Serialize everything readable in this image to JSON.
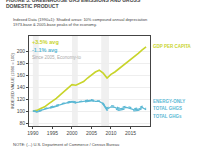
{
  "chart_data": {
    "type": "line",
    "title": "FIGURE 3. GREENHOUSE GAS EMISSIONS AND GROSS DOMESTIC PRODUCT",
    "subtitle": "Indexed Data (1990=1): Shaded areas: 10% compound annual depreciation 1973-base & 2005-base peaks of the economy.",
    "ylabel": "INDEXED VALUE (1990 = 100)",
    "note": "NOTE: (...) U.S. Department of Commerce / Census Bureau",
    "x": [
      1990,
      1991,
      1992,
      1993,
      1994,
      1995,
      1996,
      1997,
      1998,
      1999,
      2000,
      2001,
      2002,
      2003,
      2004,
      2005,
      2006,
      2007,
      2008,
      2009,
      2010,
      2011,
      2012,
      2013,
      2014,
      2015,
      2016,
      2017,
      2018,
      2019
    ],
    "series": [
      {
        "color": "#c8d42a",
        "line_style": "solid",
        "values": [
          100,
          101,
          104,
          107,
          112,
          116,
          121,
          127,
          133,
          139,
          144,
          143,
          146,
          149,
          155,
          160,
          165,
          168,
          163,
          155,
          161,
          165,
          170,
          175,
          181,
          186,
          190,
          196,
          202,
          207
        ]
      },
      {
        "color": "#5bb8d4",
        "line_style": "solid",
        "values": [
          100,
          99,
          101,
          103,
          105,
          106,
          109,
          111,
          113,
          115,
          116,
          114,
          115,
          116,
          118,
          118,
          116,
          116,
          112,
          103,
          107,
          106,
          103,
          104,
          106,
          104,
          102,
          103,
          106,
          102
        ]
      },
      {
        "color": "#5bb8d4",
        "line_style": "dashed",
        "values": [
          100,
          98,
          100,
          102,
          104,
          105,
          108,
          110,
          112,
          114,
          115,
          113,
          114,
          115,
          117,
          117,
          115,
          115,
          111,
          101,
          105,
          104,
          101,
          102,
          104,
          102,
          100,
          101,
          104,
          100
        ]
      },
      {
        "color": "#5bb8d4",
        "line_style": "dotted",
        "values": [
          100,
          100,
          101,
          104,
          106,
          107,
          109,
          112,
          113,
          116,
          117,
          115,
          116,
          117,
          118,
          119,
          117,
          117,
          113,
          105,
          109,
          108,
          105,
          106,
          108,
          106,
          104,
          105,
          108,
          104
        ]
      }
    ],
    "shaded_ranges": [
      [
        1990,
        1991.5
      ],
      [
        2000,
        2001.5
      ],
      [
        2007.5,
        2009.5
      ]
    ],
    "annotations": [
      {
        "text": "+3.5% avg",
        "color": "#c8d42a"
      },
      {
        "text": "-1.1% avg",
        "color": "#5bb8d4"
      },
      {
        "text": "Since 2005, Economy-to",
        "color": "#aaaaaa"
      },
      {
        "text": "GDP PER CAPITA",
        "color": "#c8d42a"
      },
      {
        "text": "ENERGY-ONLY",
        "color": "#5bb8d4"
      },
      {
        "text": "TOTAL GHGS",
        "color": "#5bb8d4"
      },
      {
        "text": "TOTAL GHGs",
        "color": "#5bb8d4"
      }
    ],
    "xlim": [
      1989,
      2020
    ],
    "xticks": [
      1990,
      1995,
      2000,
      2005,
      2010,
      2015
    ],
    "ylim": [
      75,
      225
    ],
    "yticks": [
      80,
      100,
      120,
      140,
      160,
      180,
      200
    ],
    "grid": true
  }
}
